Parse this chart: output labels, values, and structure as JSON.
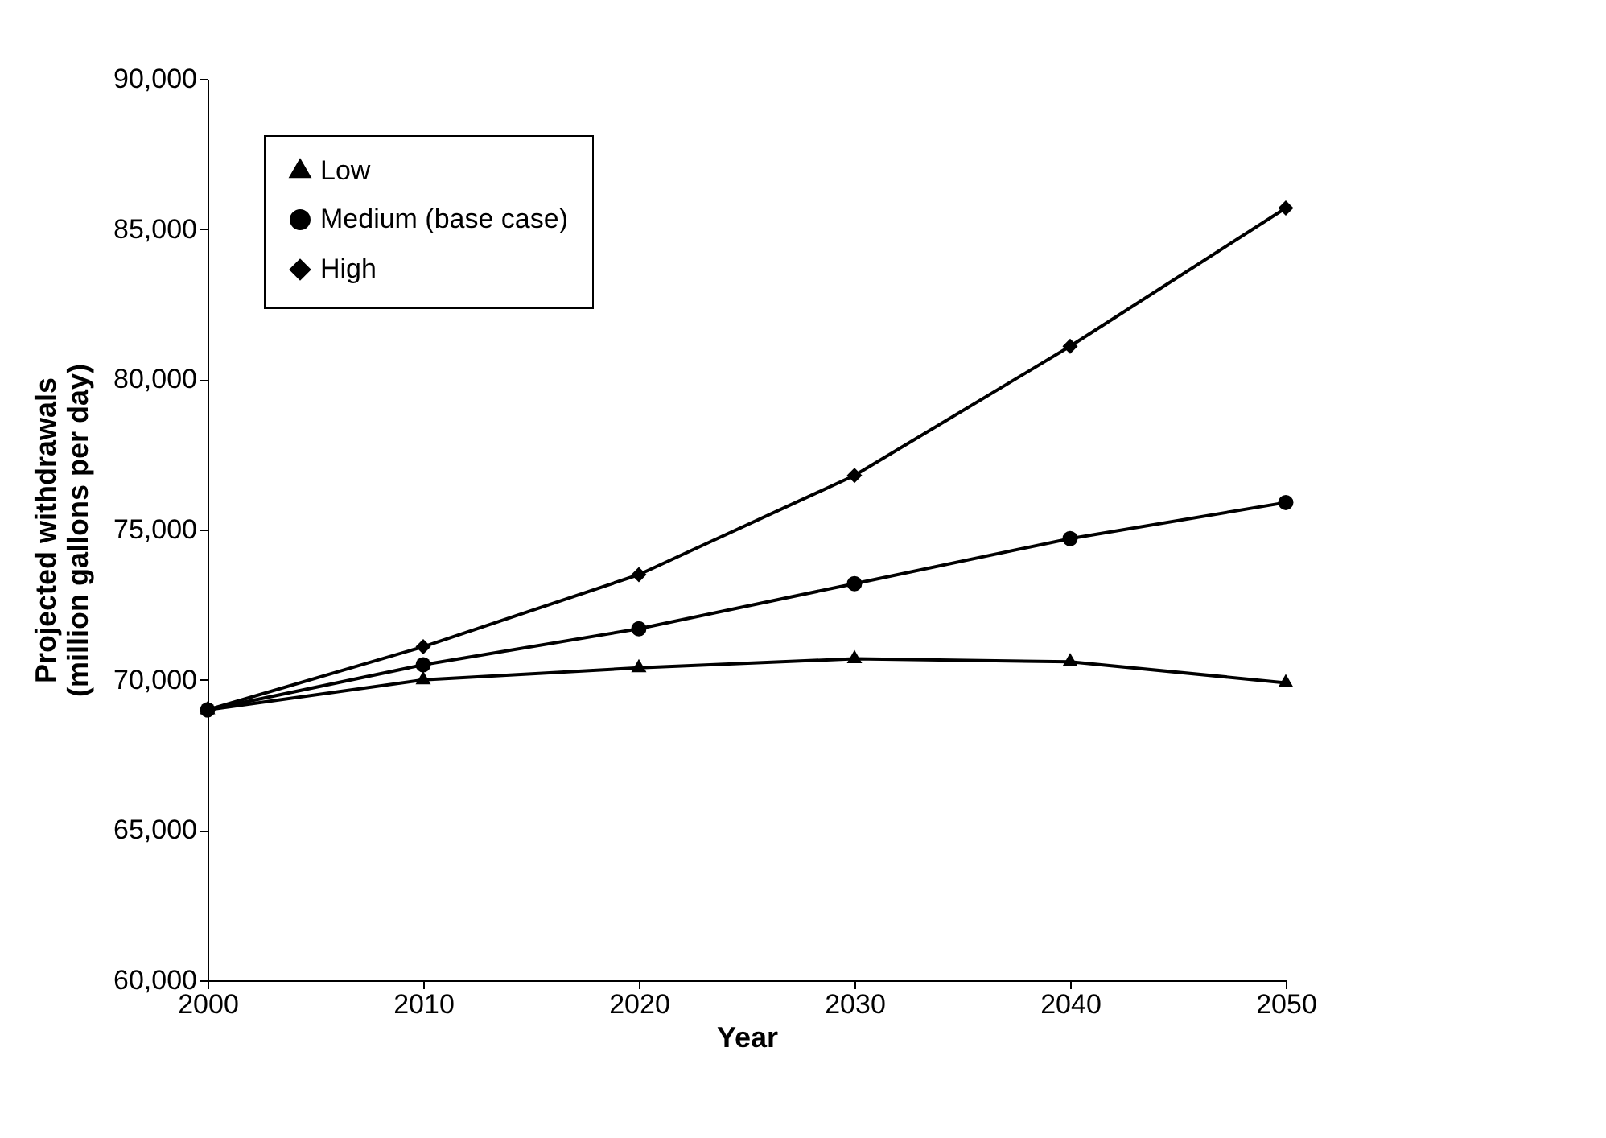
{
  "chart_data": {
    "type": "line",
    "xlabel": "Year",
    "ylabel": "Projected withdrawals\n(million gallons per day)",
    "x": [
      2000,
      2010,
      2020,
      2030,
      2040,
      2050
    ],
    "series": [
      {
        "name": "Low",
        "color": "#000000",
        "marker": "triangle",
        "values": [
          69000,
          70000,
          70400,
          70700,
          70600,
          69900
        ]
      },
      {
        "name": "Medium (base case)",
        "color": "#000000",
        "marker": "circle",
        "values": [
          69000,
          70500,
          71700,
          73200,
          74700,
          75900
        ]
      },
      {
        "name": "High",
        "color": "#000000",
        "marker": "diamond",
        "values": [
          69000,
          71100,
          73500,
          76800,
          81100,
          85700
        ]
      }
    ],
    "xlim": [
      2000,
      2050
    ],
    "xticks": [
      2000,
      2010,
      2020,
      2030,
      2040,
      2050
    ],
    "ylim": [
      60000,
      90000
    ],
    "yticks": [
      {
        "value": 60000,
        "label": "60,000"
      },
      {
        "value": 65000,
        "label": "65,000"
      },
      {
        "value": 70000,
        "label": "70,000"
      },
      {
        "value": 75000,
        "label": "75,000"
      },
      {
        "value": 80000,
        "label": "80,000"
      },
      {
        "value": 85000,
        "label": "85,000"
      },
      {
        "value": 90000,
        "label": "90,000"
      }
    ],
    "grid": false,
    "legend": "top left",
    "line_style": "solid"
  }
}
